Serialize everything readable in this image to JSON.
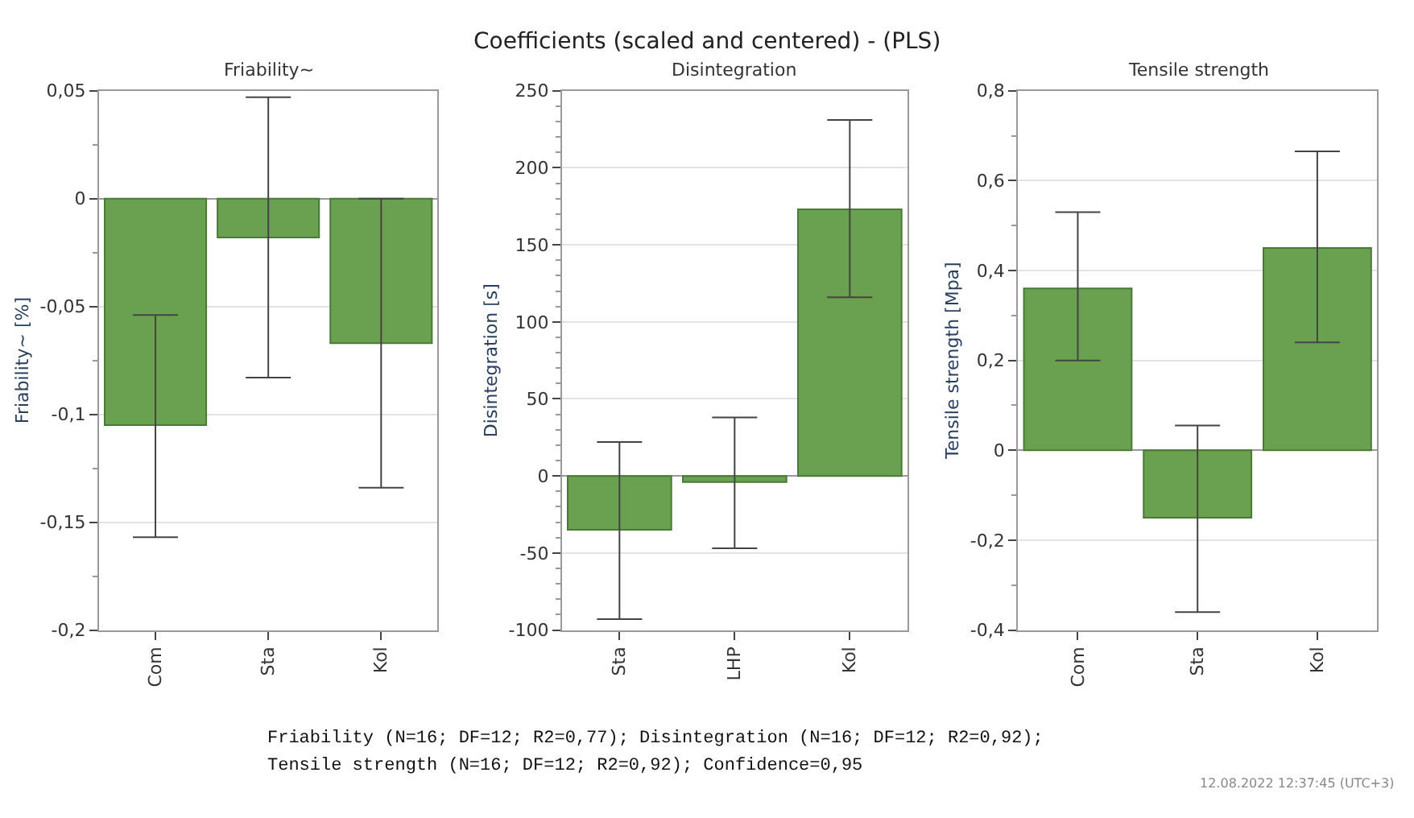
{
  "chart_data": [
    {
      "type": "bar",
      "title": "Friability~",
      "ylabel": "Friability~ [%]",
      "categories": [
        "Com",
        "Sta",
        "Kol"
      ],
      "values": [
        -0.105,
        -0.018,
        -0.067
      ],
      "errors": [
        [
          -0.157,
          -0.054
        ],
        [
          -0.083,
          0.047
        ],
        [
          -0.134,
          0.0
        ]
      ],
      "color": "#6aa151",
      "ylim": [
        -0.2,
        0.05
      ],
      "yticks": [
        {
          "value": -0.2,
          "label": "-0,2"
        },
        {
          "value": -0.175,
          "label": null
        },
        {
          "value": -0.15,
          "label": "-0,15"
        },
        {
          "value": -0.125,
          "label": null
        },
        {
          "value": -0.1,
          "label": "-0,1"
        },
        {
          "value": -0.075,
          "label": null
        },
        {
          "value": -0.05,
          "label": "-0,05"
        },
        {
          "value": -0.025,
          "label": null
        },
        {
          "value": 0,
          "label": "0"
        },
        {
          "value": 0.025,
          "label": null
        },
        {
          "value": 0.05,
          "label": "0,05"
        }
      ],
      "grid": "y",
      "annotations": [
        "Coefficients (scaled and centered) - (PLS)",
        "Friability (N=16; DF=12; R2=0,77); Disintegration (N=16; DF=12; R2=0,92);",
        "Tensile strength (N=16; DF=12; R2=0,92); Confidence=0,95",
        "12.08.2022 12:37:45 (UTC+3)"
      ]
    },
    {
      "type": "bar",
      "title": "Disintegration",
      "ylabel": "Disintegration [s]",
      "categories": [
        "Sta",
        "LHP",
        "Kol"
      ],
      "values": [
        -35,
        -4,
        173
      ],
      "errors": [
        [
          -93,
          22
        ],
        [
          -47,
          38
        ],
        [
          116,
          231
        ]
      ],
      "color": "#6aa151",
      "ylim": [
        -100,
        250
      ],
      "yticks": [
        {
          "value": -100,
          "label": "-100"
        },
        {
          "value": -90,
          "label": null
        },
        {
          "value": -80,
          "label": null
        },
        {
          "value": -70,
          "label": null
        },
        {
          "value": -60,
          "label": null
        },
        {
          "value": -50,
          "label": "-50"
        },
        {
          "value": -40,
          "label": null
        },
        {
          "value": -30,
          "label": null
        },
        {
          "value": -20,
          "label": null
        },
        {
          "value": -10,
          "label": null
        },
        0,
        {
          "value": 10,
          "label": null
        },
        {
          "value": 20,
          "label": null
        },
        {
          "value": 30,
          "label": null
        },
        {
          "value": 40,
          "label": null
        },
        50,
        {
          "value": 60,
          "label": null
        },
        {
          "value": 70,
          "label": null
        },
        {
          "value": 80,
          "label": null
        },
        {
          "value": 90,
          "label": null
        },
        100,
        {
          "value": 110,
          "label": null
        },
        {
          "value": 120,
          "label": null
        },
        {
          "value": 130,
          "label": null
        },
        {
          "value": 140,
          "label": null
        },
        150,
        {
          "value": 160,
          "label": null
        },
        {
          "value": 170,
          "label": null
        },
        {
          "value": 180,
          "label": null
        },
        {
          "value": 190,
          "label": null
        },
        200,
        {
          "value": 210,
          "label": null
        },
        {
          "value": 220,
          "label": null
        },
        {
          "value": 230,
          "label": null
        },
        {
          "value": 240,
          "label": null
        },
        250
      ],
      "grid": "y"
    },
    {
      "type": "bar",
      "title": "Tensile strength",
      "ylabel": "Tensile strength [Mpa]",
      "categories": [
        "Com",
        "Sta",
        "Kol"
      ],
      "values": [
        0.36,
        -0.15,
        0.45
      ],
      "errors": [
        [
          0.2,
          0.53
        ],
        [
          -0.36,
          0.055
        ],
        [
          0.24,
          0.665
        ]
      ],
      "color": "#6aa151",
      "ylim": [
        -0.4,
        0.8
      ],
      "yticks": [
        {
          "value": -0.4,
          "label": "-0,4"
        },
        {
          "value": -0.3,
          "label": null
        },
        {
          "value": -0.2,
          "label": "-0,2"
        },
        {
          "value": -0.1,
          "label": null
        },
        0,
        {
          "value": 0.1,
          "label": null
        },
        {
          "value": 0.2,
          "label": "0,2"
        },
        {
          "value": 0.3,
          "label": null
        },
        {
          "value": 0.4,
          "label": "0,4"
        },
        {
          "value": 0.5,
          "label": null
        },
        {
          "value": 0.6,
          "label": "0,6"
        },
        {
          "value": 0.7,
          "label": null
        },
        {
          "value": 0.8,
          "label": "0,8"
        }
      ],
      "grid": "y"
    }
  ]
}
